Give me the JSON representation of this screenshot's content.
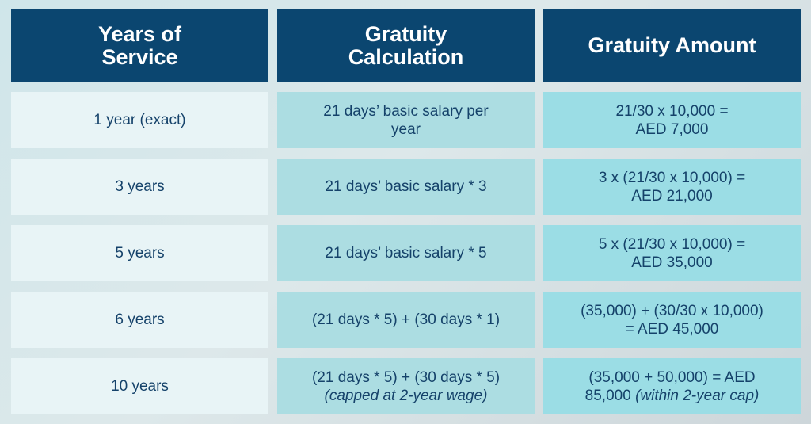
{
  "header": {
    "col1": [
      "Years of",
      "Service"
    ],
    "col2": [
      "Gratuity",
      "Calculation"
    ],
    "col3": [
      "Gratuity Amount"
    ]
  },
  "rows": [
    {
      "years": "1 year (exact)",
      "calculation": [
        "21 days’ basic salary per",
        "year"
      ],
      "calculation_note": "",
      "amount": [
        "21/30 x 10,000 =",
        "AED 7,000"
      ],
      "amount_note": ""
    },
    {
      "years": "3 years",
      "calculation": [
        "21 days’ basic salary * 3"
      ],
      "calculation_note": "",
      "amount": [
        "3 x (21/30 x 10,000) =",
        "AED 21,000"
      ],
      "amount_note": ""
    },
    {
      "years": "5 years",
      "calculation": [
        "21 days’ basic salary * 5"
      ],
      "calculation_note": "",
      "amount": [
        "5 x (21/30 x 10,000) =",
        "AED 35,000"
      ],
      "amount_note": ""
    },
    {
      "years": "6 years",
      "calculation": [
        "(21 days * 5) + (30 days * 1)"
      ],
      "calculation_note": "",
      "amount": [
        "(35,000) + (30/30 x 10,000)",
        "= AED 45,000"
      ],
      "amount_note": ""
    },
    {
      "years": "10 years",
      "calculation": [
        "(21 days * 5) + (30 days * 5)"
      ],
      "calculation_note": "(capped at 2-year wage)",
      "amount": [
        "(35,000 + 50,000) = AED",
        "85,000"
      ],
      "amount_note": "(within 2-year cap)"
    }
  ],
  "colors": {
    "header_bg": "#0b4670",
    "col1_bg": "#e8f4f6",
    "col2_bg": "#acdde2",
    "col3_bg": "#9bdde5",
    "body_text": "#15426a"
  }
}
